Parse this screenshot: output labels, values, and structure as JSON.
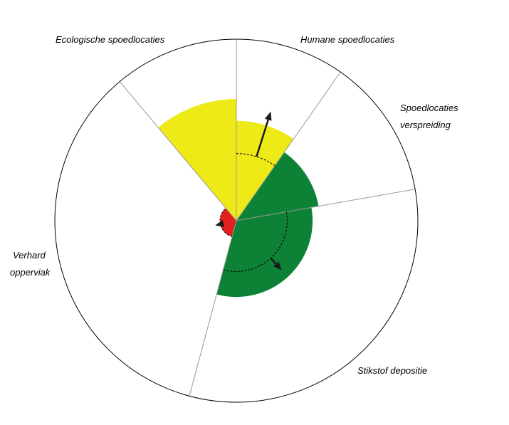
{
  "chart_data": {
    "type": "polar-area",
    "title": "",
    "rmax": 100,
    "zero_angle_clockwise_from_north": 0,
    "categories": [
      {
        "name_lines": [
          "Humane spoedlocaties"
        ],
        "start_deg": 0,
        "end_deg": 35,
        "value": 55,
        "reference": 37,
        "target": 63,
        "color": "#eeea17"
      },
      {
        "name_lines": [
          "Spoedlocaties",
          "verspreiding"
        ],
        "start_deg": 35,
        "end_deg": 80,
        "value": 46,
        "reference": null,
        "target": null,
        "color": "#0d8236"
      },
      {
        "name_lines": [
          "Stikstof depositie"
        ],
        "start_deg": 80,
        "end_deg": 195,
        "value": 42,
        "reference": 28,
        "target": 37,
        "color": "#0d8236"
      },
      {
        "name_lines": [
          "Verhard",
          "opperviak"
        ],
        "start_deg": 195,
        "end_deg": 320,
        "value": 9,
        "reference": 9,
        "target": 12,
        "color": "#e3201d"
      },
      {
        "name_lines": [
          "Ecologische spoedlocaties"
        ],
        "start_deg": 320,
        "end_deg": 360,
        "value": 67,
        "reference": null,
        "target": null,
        "color": "#eeea17"
      }
    ],
    "colors": {
      "outline": "#000000",
      "sector_divider": "#999999",
      "reference_arc": "#000000",
      "arrow": "#1a1a1a"
    }
  }
}
